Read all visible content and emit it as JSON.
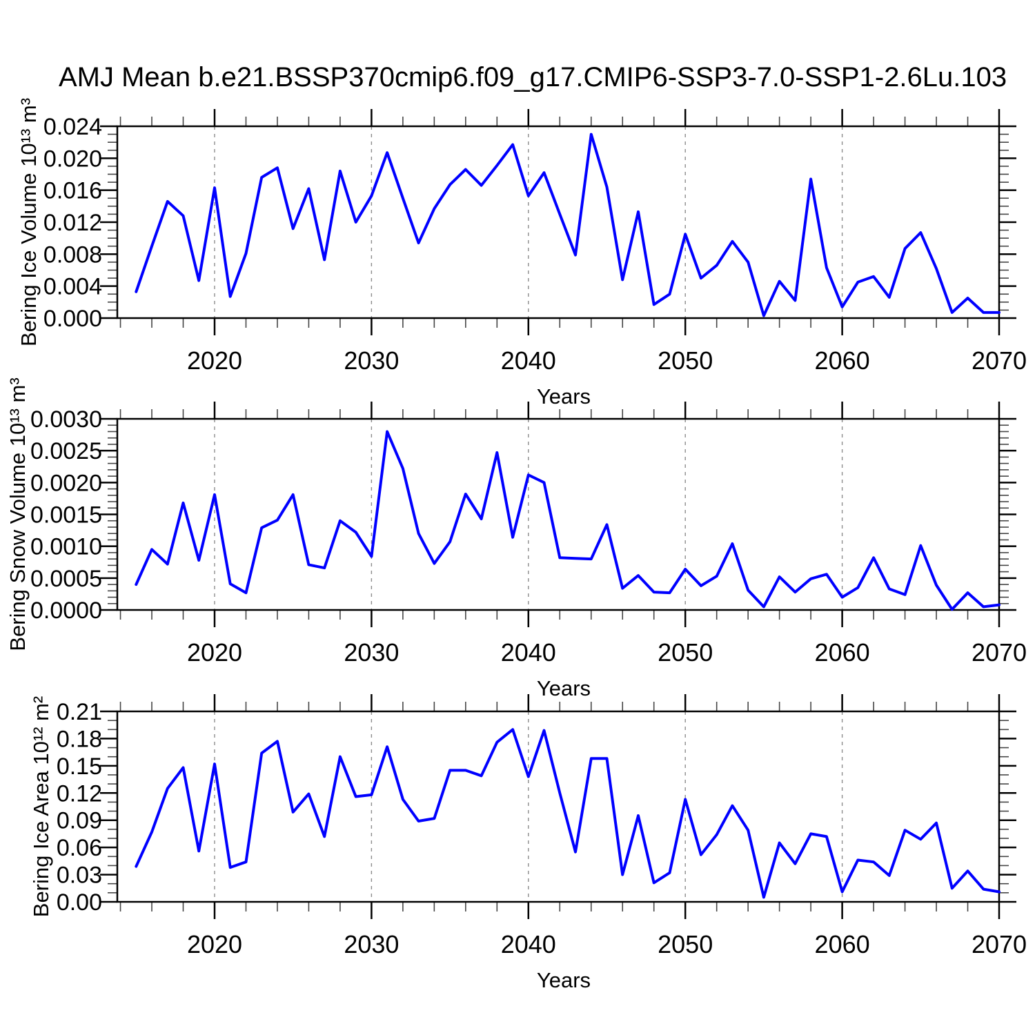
{
  "title": "AMJ Mean b.e21.BSSP370cmip6.f09_g17.CMIP6-SSP3-7.0-SSP1-2.6Lu.103",
  "colors": {
    "line": "#0000ff",
    "axis": "#000000",
    "minor_tick": "#444444",
    "grid": "#8c8c8c",
    "text": "#000000",
    "background": "#ffffff"
  },
  "chart_data": [
    {
      "type": "line",
      "panel": "top",
      "ylabel": "Bering Ice Volume 10¹³ m³",
      "xlabel": "Years",
      "x_range": [
        2013.8,
        2070
      ],
      "ylim": [
        0,
        0.024
      ],
      "y_major_step": 0.004,
      "y_minor_step": 0.001,
      "y_tick_labels": [
        "0.000",
        "0.004",
        "0.008",
        "0.012",
        "0.016",
        "0.020",
        "0.024"
      ],
      "x_major_ticks": [
        2020,
        2030,
        2040,
        2050,
        2060,
        2070
      ],
      "x_tick_labels": [
        "2020",
        "2030",
        "2040",
        "2050",
        "2060",
        "2070"
      ],
      "x_minor_step": 2,
      "grid_vertical_dashed_at": [
        2020,
        2030,
        2040,
        2050,
        2060
      ],
      "x": [
        2015,
        2016,
        2017,
        2018,
        2019,
        2020,
        2021,
        2022,
        2023,
        2024,
        2025,
        2026,
        2027,
        2028,
        2029,
        2030,
        2031,
        2032,
        2033,
        2034,
        2035,
        2036,
        2037,
        2038,
        2039,
        2040,
        2041,
        2042,
        2043,
        2044,
        2045,
        2046,
        2047,
        2048,
        2049,
        2050,
        2051,
        2052,
        2053,
        2054,
        2055,
        2056,
        2057,
        2058,
        2059,
        2060,
        2061,
        2062,
        2063,
        2064,
        2065,
        2066,
        2067,
        2068,
        2069,
        2070
      ],
      "values": [
        0.0033,
        0.009,
        0.0146,
        0.0128,
        0.0047,
        0.0163,
        0.0027,
        0.0081,
        0.0176,
        0.0188,
        0.0112,
        0.0162,
        0.0073,
        0.0184,
        0.012,
        0.0153,
        0.0207,
        0.015,
        0.0094,
        0.0137,
        0.0167,
        0.0186,
        0.0166,
        0.0191,
        0.0217,
        0.0153,
        0.0182,
        0.013,
        0.0079,
        0.023,
        0.0164,
        0.0048,
        0.0133,
        0.0017,
        0.003,
        0.0105,
        0.005,
        0.0066,
        0.0096,
        0.007,
        0.0003,
        0.0046,
        0.0022,
        0.0174,
        0.0063,
        0.0014,
        0.0045,
        0.0052,
        0.0026,
        0.0087,
        0.0107,
        0.0062,
        0.0007,
        0.0025,
        0.0007,
        0.0007
      ]
    },
    {
      "type": "line",
      "panel": "middle",
      "ylabel": "Bering Snow Volume 10¹³ m³",
      "xlabel": "Years",
      "x_range": [
        2013.8,
        2070
      ],
      "ylim": [
        0,
        0.003
      ],
      "y_major_step": 0.0005,
      "y_minor_step": 0.0001,
      "y_tick_labels": [
        "0.0000",
        "0.0005",
        "0.0010",
        "0.0015",
        "0.0020",
        "0.0025",
        "0.0030"
      ],
      "x_major_ticks": [
        2020,
        2030,
        2040,
        2050,
        2060,
        2070
      ],
      "x_tick_labels": [
        "2020",
        "2030",
        "2040",
        "2050",
        "2060",
        "2070"
      ],
      "x_minor_step": 2,
      "grid_vertical_dashed_at": [
        2020,
        2030,
        2040,
        2050,
        2060
      ],
      "x": [
        2015,
        2016,
        2017,
        2018,
        2019,
        2020,
        2021,
        2022,
        2023,
        2024,
        2025,
        2026,
        2027,
        2028,
        2029,
        2030,
        2031,
        2032,
        2033,
        2034,
        2035,
        2036,
        2037,
        2038,
        2039,
        2040,
        2041,
        2042,
        2043,
        2044,
        2045,
        2046,
        2047,
        2048,
        2049,
        2050,
        2051,
        2052,
        2053,
        2054,
        2055,
        2056,
        2057,
        2058,
        2059,
        2060,
        2061,
        2062,
        2063,
        2064,
        2065,
        2066,
        2067,
        2068,
        2069,
        2070
      ],
      "values": [
        0.0004,
        0.00095,
        0.00072,
        0.00168,
        0.00078,
        0.00181,
        0.00041,
        0.00027,
        0.00129,
        0.00141,
        0.00181,
        0.00071,
        0.00066,
        0.0014,
        0.00122,
        0.00084,
        0.0028,
        0.00222,
        0.0012,
        0.00073,
        0.00107,
        0.00182,
        0.00143,
        0.00247,
        0.00114,
        0.00212,
        0.002,
        0.00082,
        0.00081,
        0.0008,
        0.00134,
        0.00034,
        0.00054,
        0.00028,
        0.00027,
        0.00064,
        0.00038,
        0.00053,
        0.00104,
        0.00031,
        5e-05,
        0.00052,
        0.00028,
        0.00049,
        0.00056,
        0.0002,
        0.00035,
        0.00082,
        0.00033,
        0.00024,
        0.00101,
        0.00039,
        1e-05,
        0.00027,
        5e-05,
        8e-05
      ]
    },
    {
      "type": "line",
      "panel": "bottom",
      "ylabel": "Bering Ice Area 10¹² m²",
      "xlabel": "Years",
      "x_range": [
        2013.8,
        2070
      ],
      "ylim": [
        0,
        0.21
      ],
      "y_major_step": 0.03,
      "y_minor_step": 0.01,
      "y_tick_labels": [
        "0.00",
        "0.03",
        "0.06",
        "0.09",
        "0.12",
        "0.15",
        "0.18",
        "0.21"
      ],
      "x_major_ticks": [
        2020,
        2030,
        2040,
        2050,
        2060,
        2070
      ],
      "x_tick_labels": [
        "2020",
        "2030",
        "2040",
        "2050",
        "2060",
        "2070"
      ],
      "x_minor_step": 2,
      "grid_vertical_dashed_at": [
        2020,
        2030,
        2040,
        2050,
        2060
      ],
      "x": [
        2015,
        2016,
        2017,
        2018,
        2019,
        2020,
        2021,
        2022,
        2023,
        2024,
        2025,
        2026,
        2027,
        2028,
        2029,
        2030,
        2031,
        2032,
        2033,
        2034,
        2035,
        2036,
        2037,
        2038,
        2039,
        2040,
        2041,
        2042,
        2043,
        2044,
        2045,
        2046,
        2047,
        2048,
        2049,
        2050,
        2051,
        2052,
        2053,
        2054,
        2055,
        2056,
        2057,
        2058,
        2059,
        2060,
        2061,
        2062,
        2063,
        2064,
        2065,
        2066,
        2067,
        2068,
        2069,
        2070
      ],
      "values": [
        0.039,
        0.077,
        0.125,
        0.148,
        0.056,
        0.152,
        0.038,
        0.044,
        0.164,
        0.177,
        0.099,
        0.119,
        0.072,
        0.16,
        0.116,
        0.118,
        0.171,
        0.113,
        0.089,
        0.092,
        0.145,
        0.145,
        0.139,
        0.176,
        0.19,
        0.138,
        0.189,
        0.12,
        0.055,
        0.158,
        0.158,
        0.03,
        0.095,
        0.021,
        0.032,
        0.113,
        0.052,
        0.074,
        0.106,
        0.079,
        0.005,
        0.065,
        0.042,
        0.075,
        0.072,
        0.011,
        0.046,
        0.044,
        0.029,
        0.079,
        0.069,
        0.087,
        0.015,
        0.034,
        0.014,
        0.011
      ]
    }
  ]
}
